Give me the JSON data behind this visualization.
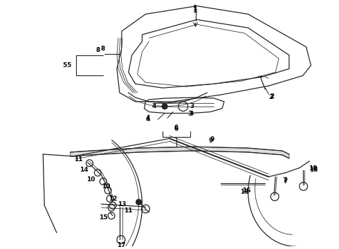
{
  "bg_color": "#ffffff",
  "line_color": "#222222",
  "label_color": "#000000",
  "figsize": [
    4.9,
    3.6
  ],
  "dpi": 100
}
